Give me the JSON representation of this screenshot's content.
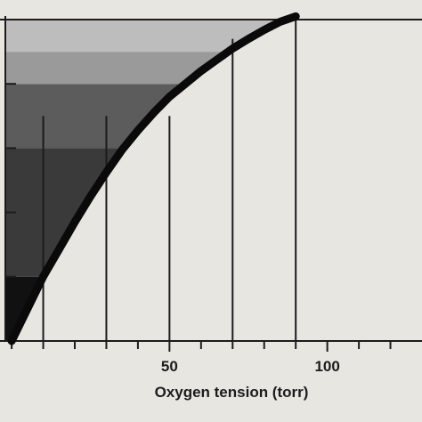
{
  "chart_data": {
    "type": "area",
    "xlabel": "Oxygen tension (torr)",
    "xlim": [
      -2,
      130
    ],
    "ylim": [
      0,
      100
    ],
    "x_tick_labels": [
      {
        "value": 50,
        "label": "50"
      },
      {
        "value": 100,
        "label": "100"
      }
    ],
    "x_major_ticks": [
      10,
      30,
      50,
      70,
      90
    ],
    "x_minor_ticks": [
      0,
      10,
      20,
      30,
      40,
      50,
      60,
      70,
      80,
      90,
      100,
      110,
      120
    ],
    "y_ticks": [
      20,
      40,
      60,
      80,
      100
    ],
    "curve": {
      "x": [
        0,
        5,
        10,
        15,
        20,
        25,
        30,
        35,
        40,
        45,
        50,
        55,
        60,
        65,
        70,
        75,
        80,
        85,
        90
      ],
      "y": [
        0,
        10,
        20,
        28.5,
        37,
        45,
        52.5,
        59.5,
        65.5,
        71,
        76,
        80,
        84,
        87.5,
        91,
        94,
        96.8,
        99.3,
        101
      ]
    },
    "bands": [
      {
        "y_from": 0,
        "y_to": 20,
        "color": "#111111"
      },
      {
        "y_from": 20,
        "y_to": 60,
        "color": "#3a3a3a"
      },
      {
        "y_from": 60,
        "y_to": 80,
        "color": "#5c5c5c"
      },
      {
        "y_from": 80,
        "y_to": 90,
        "color": "#9a9a9a"
      },
      {
        "y_from": 90,
        "y_to": 100,
        "color": "#bdbdbd"
      }
    ],
    "colors": {
      "background": "#e8e6e1",
      "curve": "#0a0a0a",
      "axis": "#1c1c1c",
      "grid": "#1c1c1c"
    }
  }
}
